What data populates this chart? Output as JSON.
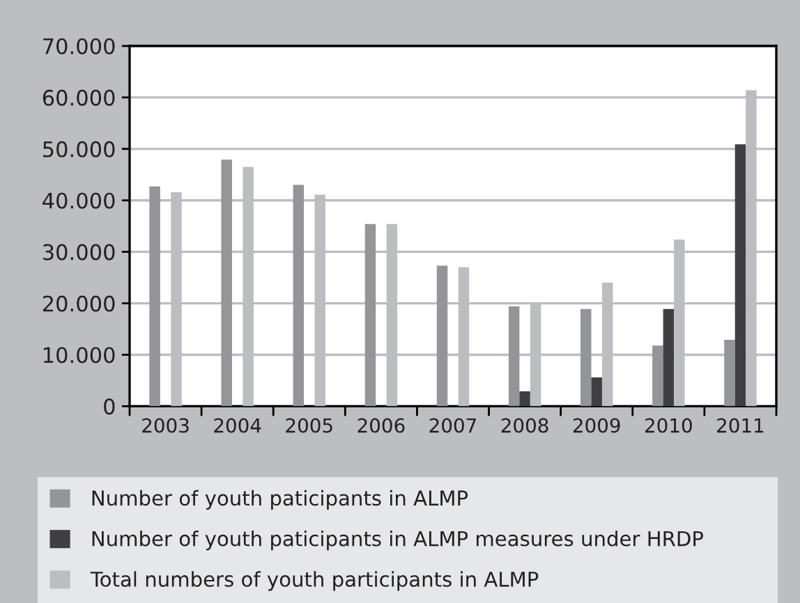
{
  "chart_data": {
    "type": "bar",
    "categories": [
      "2003",
      "2004",
      "2005",
      "2006",
      "2007",
      "2008",
      "2009",
      "2010",
      "2011"
    ],
    "series": [
      {
        "name": "Number of youth paticipants in ALMP",
        "color": "#939598",
        "values": [
          42700,
          47900,
          43000,
          35400,
          27300,
          19400,
          18900,
          11800,
          12900
        ]
      },
      {
        "name": "Number of youth paticipants in ALMP measures under HRDP",
        "color": "#3f3f41",
        "values": [
          null,
          null,
          null,
          null,
          null,
          2900,
          5600,
          18900,
          50900
        ]
      },
      {
        "name": "Total numbers of youth participants in ALMP",
        "color": "#bcbdc0",
        "values": [
          41600,
          46500,
          41100,
          35400,
          27000,
          20200,
          24000,
          32400,
          61400
        ]
      }
    ],
    "ylim": [
      0,
      70000
    ],
    "yticks": [
      0,
      {
        "value": 10000,
        "label": "10.000"
      },
      {
        "value": 20000,
        "label": "20.000"
      },
      {
        "value": 30000,
        "label": "30.000"
      },
      {
        "value": 40000,
        "label": "40.000"
      },
      {
        "value": 50000,
        "label": "50.000"
      },
      {
        "value": 60000,
        "label": "60.000"
      },
      {
        "value": 70000,
        "label": "70.000"
      }
    ],
    "grid": "y",
    "legend": "bottom"
  }
}
